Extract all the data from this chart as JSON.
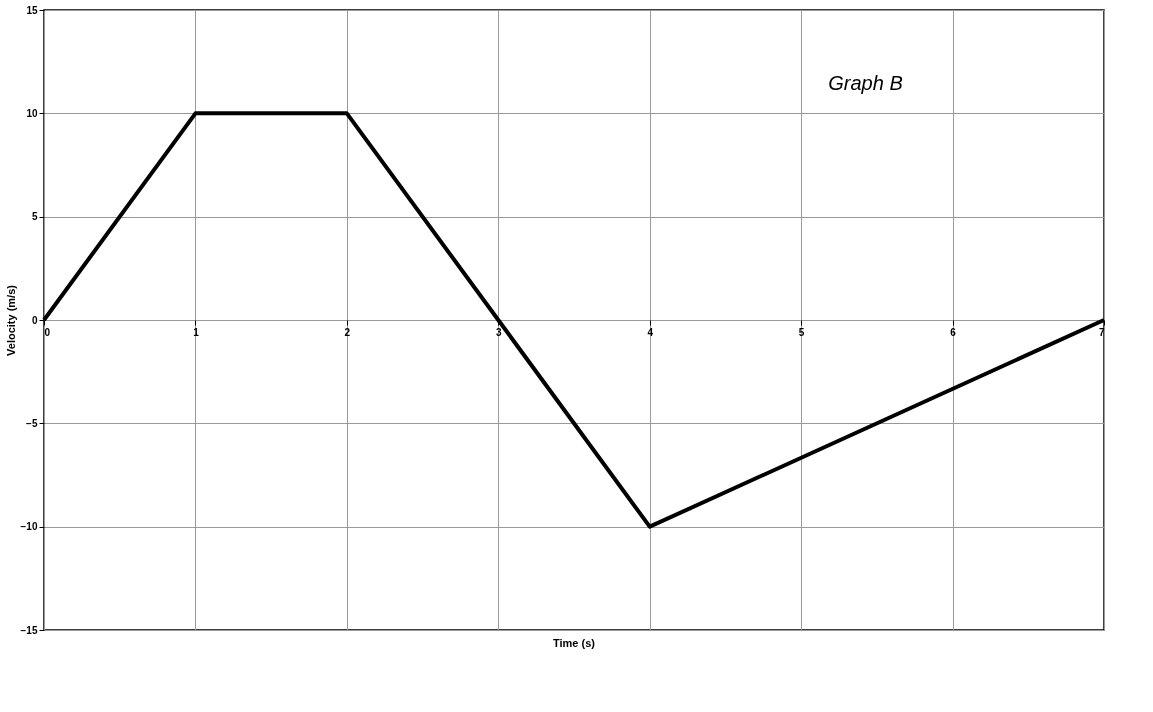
{
  "chart_data": {
    "type": "line",
    "xlabel": "Time (s)",
    "ylabel": "Velocity (m/s)",
    "annotations": [
      "Graph B"
    ],
    "x": [
      0,
      1,
      2,
      3,
      4,
      7
    ],
    "series": [
      {
        "color": "#000000",
        "values": [
          0,
          10,
          10,
          0,
          -10,
          0
        ]
      }
    ],
    "xlim": [
      0,
      7
    ],
    "xticks": [
      0,
      1,
      2,
      3,
      4,
      5,
      6,
      7
    ],
    "ylim": [
      -15,
      15
    ],
    "yticks": [
      -15,
      -10,
      -5,
      0,
      5,
      10,
      15
    ],
    "grid": true,
    "marker": "none",
    "line_style": "solid"
  }
}
